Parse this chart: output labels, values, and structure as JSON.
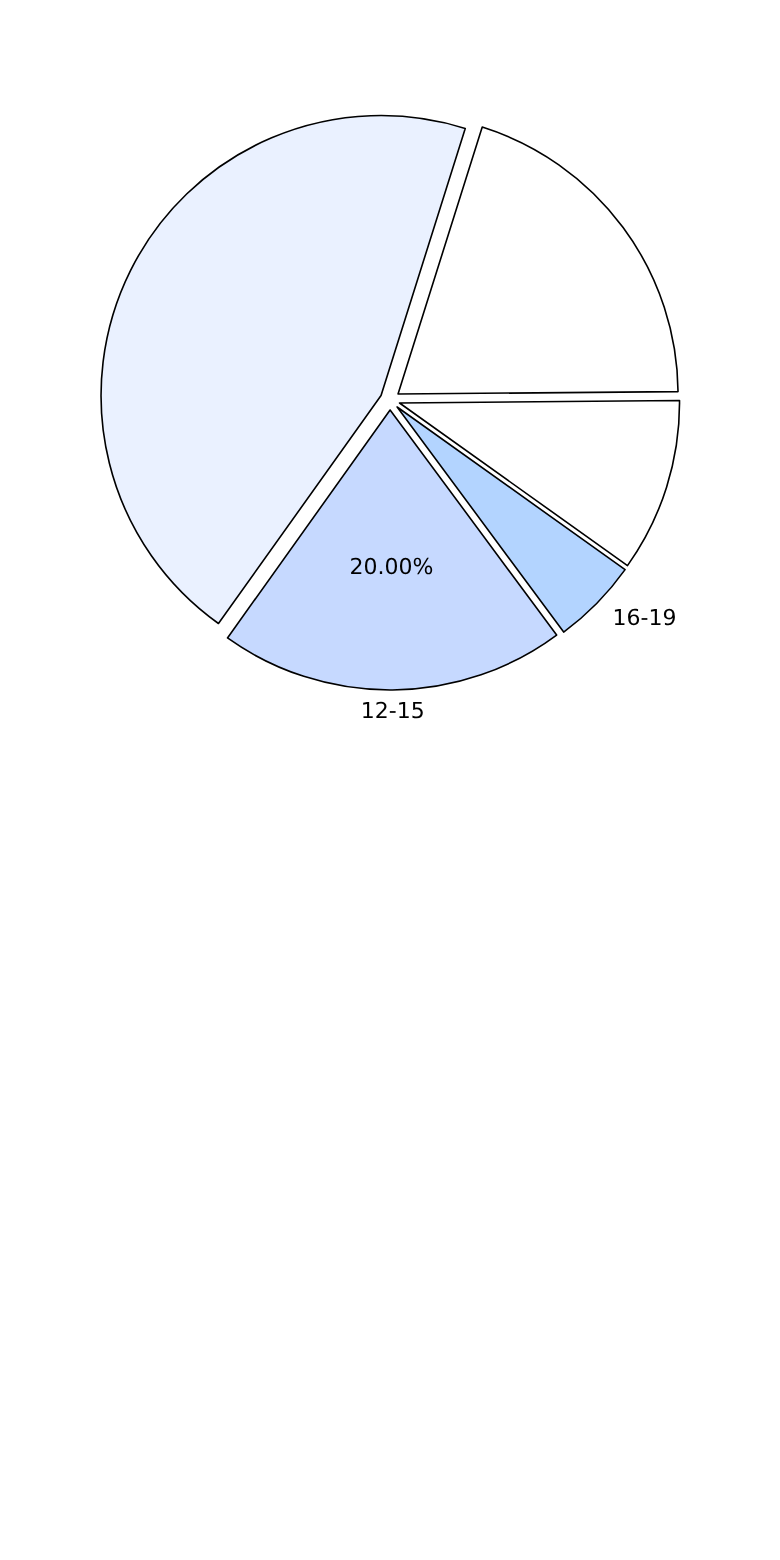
{
  "chart_data": {
    "type": "pie",
    "categories": [
      null,
      null,
      "16-19",
      "12-15",
      null
    ],
    "values": [
      20,
      10,
      5,
      20,
      45
    ],
    "colors": [
      "#ffffff",
      "#ffffff",
      "#b3d4ff",
      "#c6d9ff",
      "#eaf1ff"
    ],
    "value_labels": [
      null,
      null,
      null,
      "20.00%",
      null
    ]
  }
}
